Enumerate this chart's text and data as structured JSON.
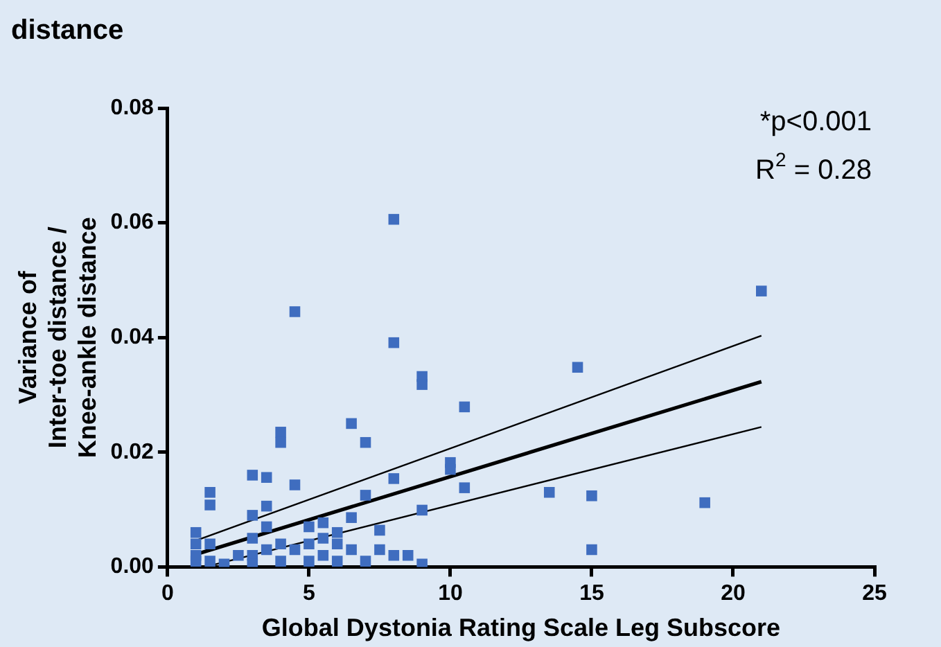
{
  "chart_data": {
    "type": "scatter",
    "title": "distance",
    "xlabel": "Global Dystonia Rating Scale Leg Subscore",
    "ylabel": "Variance of\nInter-toe distance /\nKnee-ankle distance",
    "annotations": [
      "*p<0.001",
      "R$^{2}$ = 0.28"
    ],
    "xlim": [
      0,
      25
    ],
    "xticks": [
      0,
      5,
      10,
      15,
      20,
      25
    ],
    "ylim": [
      0,
      0.08
    ],
    "yticks": [
      {
        "value": 0,
        "label": "0.00"
      },
      {
        "value": 0.02,
        "label": "0.02"
      },
      {
        "value": 0.04,
        "label": "0.04"
      },
      {
        "value": 0.06,
        "label": "0.06"
      },
      {
        "value": 0.08,
        "label": "0.08"
      }
    ],
    "grid": false,
    "legend": false,
    "series": [
      {
        "marker": "square",
        "color": "#3f6dbf",
        "x": [
          8,
          4.5,
          8,
          9,
          9,
          10.5,
          4,
          4,
          6.5,
          7,
          10,
          10,
          10.5,
          8,
          3,
          3.5,
          4.5,
          1.5,
          1.5,
          3.5,
          9,
          7,
          6.5,
          7.5,
          5.5,
          3,
          21,
          14.5,
          13.5,
          15,
          19,
          15,
          1,
          1,
          1,
          1,
          1.5,
          1.5,
          2,
          2.5,
          3,
          3,
          3,
          3.5,
          3.5,
          4,
          4,
          4.5,
          5,
          5,
          5.5,
          5.5,
          6,
          6,
          6.5,
          7,
          7.5,
          8,
          8.5,
          9,
          5,
          6
        ],
        "values": [
          0.0606,
          0.0445,
          0.0391,
          0.0332,
          0.0318,
          0.0279,
          0.0235,
          0.0217,
          0.025,
          0.0217,
          0.0182,
          0.017,
          0.0138,
          0.0154,
          0.016,
          0.0156,
          0.0143,
          0.013,
          0.0108,
          0.0106,
          0.0099,
          0.0125,
          0.0086,
          0.0064,
          0.0077,
          0.009,
          0.0481,
          0.0348,
          0.013,
          0.0124,
          0.0112,
          0.003,
          0.006,
          0.004,
          0.002,
          0.001,
          0.004,
          0.001,
          0.0005,
          0.002,
          0.005,
          0.002,
          0.0005,
          0.007,
          0.003,
          0.004,
          0.001,
          0.003,
          0.004,
          0.001,
          0.005,
          0.002,
          0.004,
          0.001,
          0.003,
          0.001,
          0.003,
          0.002,
          0.002,
          0.0005,
          0.007,
          0.006
        ]
      },
      {
        "type": "line",
        "color": "#000000",
        "marker": "none",
        "x": [
          1,
          21
        ],
        "values": [
          0.0022,
          0.0323
        ]
      },
      {
        "type": "line",
        "color": "#000000",
        "marker": "none",
        "x": [
          1,
          21
        ],
        "values": [
          0.0046,
          0.0403
        ]
      },
      {
        "type": "line",
        "color": "#000000",
        "marker": "none",
        "x": [
          1.4,
          21
        ],
        "values": [
          0.0001,
          0.0244
        ]
      }
    ]
  }
}
